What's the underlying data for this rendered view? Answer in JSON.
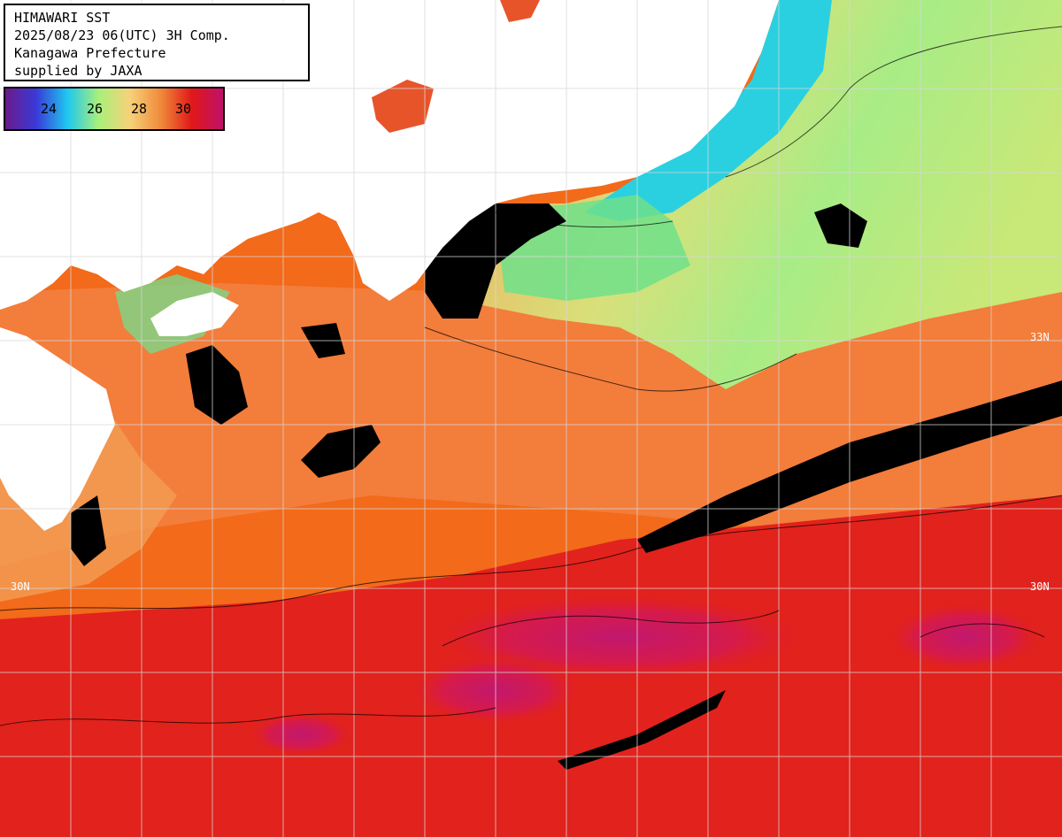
{
  "header": {
    "line1": "HIMAWARI SST",
    "line2": "2025/08/23 06(UTC) 3H Comp.",
    "line3": "Kanagawa Prefecture",
    "line4": "supplied by JAXA"
  },
  "color_scale": {
    "labels": [
      "24",
      "26",
      "28",
      "30"
    ],
    "gradient": [
      "#6a1a8a",
      "#3a3ad8",
      "#1ec8f0",
      "#a8f07a",
      "#f6d27a",
      "#f08a3a",
      "#e01818",
      "#c0106a"
    ]
  },
  "grid_labels": {
    "lat_33_right": "33N",
    "lat_30_left": "30N",
    "lat_30_right": "30N"
  },
  "colors": {
    "land": "#ffffff",
    "cloud": "#000000",
    "warm_sea": "#f26a1a",
    "hot_sea": "#e2221c",
    "very_hot_sea": "#c2186e",
    "cool_sea": "#9ae67a",
    "coastal_cool": "#2ad0e0",
    "mild_sea": "#f4a65a",
    "grid": "#d8d8d8"
  }
}
